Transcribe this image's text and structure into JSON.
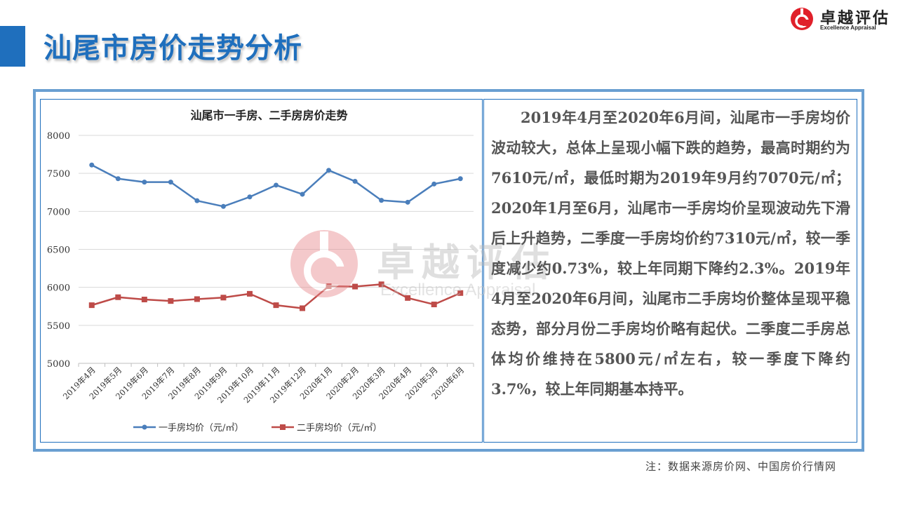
{
  "page": {
    "title": "汕尾市房价走势分析",
    "source_note": "注：数据来源房价网、中国房价行情网"
  },
  "logo": {
    "cn": "卓越评估",
    "en": "Excellence Appraisal",
    "brand_color": "#e0202a"
  },
  "watermark": {
    "cn": "卓越评估",
    "en": "Excellence Appraisal"
  },
  "description": "2019年4月至2020年6月间，汕尾市一手房均价波动较大，总体上呈现小幅下跌的趋势，最高时期约为7610元/㎡，最低时期为2019年9月约7070元/㎡；2020年1月至6月，汕尾市一手房均价呈现波动先下滑后上升趋势，二季度一手房均价约7310元/㎡，较一季度减少约0.73%，较上年同期下降约2.3%。2019年4月至2020年6月间，汕尾市二手房均价整体呈现平稳态势，部分月份二手房均价略有起伏。二季度二手房总体均价维持在5800元/㎡左右，较一季度下降约3.7%，较上年同期基本持平。",
  "chart_data": {
    "type": "line",
    "title": "汕尾市一手房、二手房房价走势",
    "xlabel": "",
    "ylabel": "",
    "categories": [
      "2019年4月",
      "2019年5月",
      "2019年6月",
      "2019年7月",
      "2019年8月",
      "2019年9月",
      "2019年10月",
      "2019年11月",
      "2019年12月",
      "2020年1月",
      "2020年2月",
      "2020年3月",
      "2020年4月",
      "2020年5月",
      "2020年6月"
    ],
    "ylim": [
      5000,
      8000
    ],
    "yticks": [
      5000,
      5500,
      6000,
      6500,
      7000,
      7500,
      8000
    ],
    "grid": true,
    "legend_position": "bottom",
    "series": [
      {
        "name": "一手房均价（元/㎡）",
        "color": "#4a7ebb",
        "marker": "circle",
        "values": [
          7610,
          7430,
          7385,
          7385,
          7140,
          7065,
          7190,
          7345,
          7225,
          7540,
          7395,
          7145,
          7120,
          7360,
          7430
        ]
      },
      {
        "name": "二手房均价（元/㎡）",
        "color": "#be4b48",
        "marker": "square",
        "values": [
          5765,
          5870,
          5840,
          5820,
          5845,
          5865,
          5915,
          5765,
          5725,
          6015,
          6010,
          6040,
          5860,
          5775,
          5925
        ]
      }
    ]
  }
}
